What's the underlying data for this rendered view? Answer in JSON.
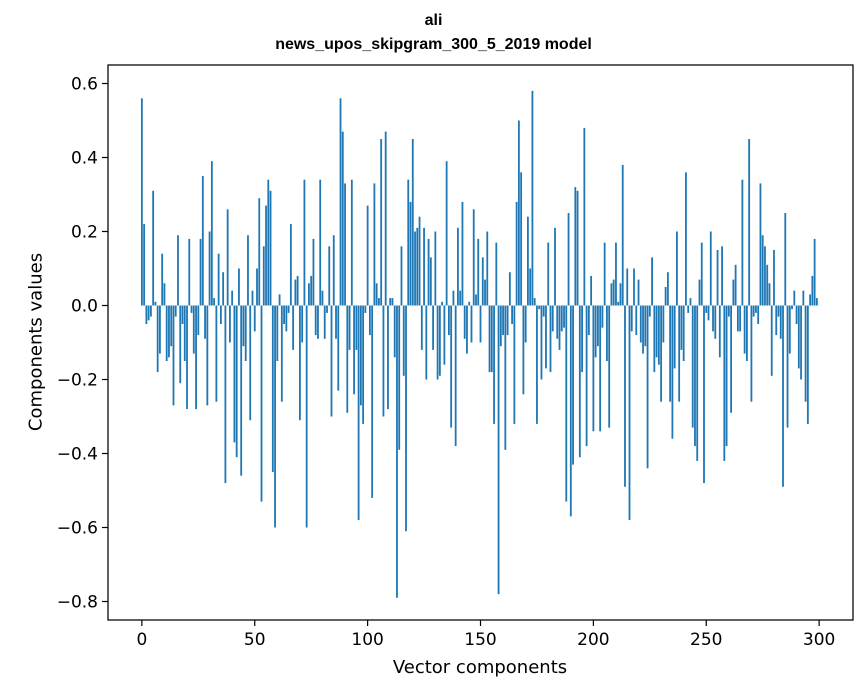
{
  "chart_data": {
    "type": "bar",
    "title": "ali",
    "subtitle": "news_upos_skipgram_300_5_2019 model",
    "xlabel": "Vector components",
    "ylabel": "Components values",
    "xlim": [
      -15,
      315
    ],
    "ylim": [
      -0.85,
      0.65
    ],
    "xticks": [
      0,
      50,
      100,
      150,
      200,
      250,
      300
    ],
    "yticks": [
      -0.8,
      -0.6,
      -0.4,
      -0.2,
      0.0,
      0.2,
      0.4,
      0.6
    ],
    "ytick_labels": [
      "−0.8",
      "−0.6",
      "−0.4",
      "−0.2",
      "0.0",
      "0.2",
      "0.4",
      "0.6"
    ],
    "bar_color": "#1f77b4",
    "grid": false,
    "x": "component index 0..299",
    "values": [
      0.56,
      0.22,
      -0.05,
      -0.04,
      -0.03,
      0.31,
      0.01,
      -0.18,
      -0.13,
      0.14,
      0.06,
      -0.15,
      -0.14,
      -0.11,
      -0.27,
      -0.03,
      0.19,
      -0.21,
      -0.05,
      -0.15,
      -0.28,
      0.18,
      -0.02,
      -0.13,
      -0.28,
      -0.08,
      0.18,
      0.35,
      -0.09,
      -0.27,
      0.2,
      0.39,
      0.02,
      -0.26,
      0.14,
      -0.05,
      0.09,
      -0.48,
      0.26,
      -0.1,
      0.04,
      -0.37,
      -0.41,
      0.1,
      -0.46,
      -0.11,
      -0.15,
      0.19,
      -0.31,
      0.04,
      -0.07,
      0.1,
      0.29,
      -0.53,
      0.16,
      0.27,
      0.34,
      0.31,
      -0.45,
      -0.6,
      -0.15,
      0.03,
      -0.26,
      -0.05,
      -0.07,
      -0.02,
      0.22,
      -0.12,
      0.07,
      0.08,
      -0.31,
      -0.1,
      0.34,
      -0.6,
      0.06,
      0.08,
      0.18,
      -0.08,
      -0.09,
      0.34,
      0.04,
      -0.09,
      -0.02,
      0.16,
      -0.3,
      0.19,
      -0.09,
      -0.23,
      0.56,
      0.47,
      0.33,
      -0.29,
      -0.12,
      0.34,
      -0.24,
      -0.12,
      -0.58,
      -0.27,
      -0.32,
      -0.02,
      0.27,
      -0.08,
      -0.52,
      0.33,
      0.06,
      0.02,
      0.45,
      -0.3,
      0.47,
      -0.28,
      0.02,
      0.02,
      -0.14,
      -0.79,
      -0.39,
      0.16,
      -0.19,
      -0.61,
      0.34,
      0.28,
      0.45,
      0.2,
      0.21,
      0.24,
      -0.12,
      0.21,
      -0.2,
      0.18,
      0.13,
      -0.12,
      0.2,
      -0.2,
      -0.19,
      0.01,
      -0.16,
      0.39,
      -0.08,
      -0.33,
      0.04,
      -0.38,
      0.21,
      0.04,
      0.28,
      -0.09,
      -0.13,
      0.01,
      -0.1,
      0.26,
      0.03,
      0.18,
      -0.1,
      0.13,
      0.07,
      0.2,
      -0.18,
      -0.18,
      -0.32,
      0.17,
      -0.78,
      -0.11,
      -0.08,
      -0.39,
      -0.08,
      0.09,
      -0.05,
      -0.32,
      0.28,
      0.5,
      0.36,
      -0.24,
      -0.1,
      0.24,
      0.1,
      0.58,
      0.02,
      -0.32,
      -0.01,
      -0.2,
      -0.03,
      -0.17,
      0.17,
      -0.18,
      -0.07,
      0.21,
      -0.09,
      -0.12,
      -0.07,
      -0.06,
      -0.53,
      0.25,
      -0.57,
      -0.43,
      0.32,
      0.31,
      -0.41,
      -0.18,
      0.48,
      -0.38,
      -0.08,
      0.08,
      -0.34,
      -0.14,
      -0.11,
      -0.34,
      -0.06,
      0.17,
      -0.15,
      -0.33,
      0.06,
      0.07,
      0.17,
      0.01,
      0.06,
      0.38,
      -0.49,
      0.1,
      -0.58,
      -0.07,
      0.1,
      -0.08,
      0.07,
      -0.1,
      -0.13,
      -0.11,
      -0.44,
      -0.03,
      0.13,
      -0.18,
      -0.14,
      -0.16,
      -0.26,
      -0.1,
      0.05,
      0.09,
      -0.26,
      -0.36,
      -0.17,
      0.2,
      -0.26,
      -0.12,
      -0.15,
      0.36,
      -0.02,
      0.02,
      -0.33,
      -0.38,
      -0.42,
      0.07,
      0.17,
      -0.48,
      -0.02,
      -0.04,
      0.2,
      -0.07,
      -0.09,
      0.15,
      -0.14,
      0.16,
      -0.42,
      -0.38,
      -0.03,
      -0.29,
      0.07,
      0.11,
      -0.07,
      -0.07,
      0.34,
      -0.13,
      -0.15,
      0.45,
      -0.26,
      -0.03,
      -0.02,
      -0.05,
      0.33,
      0.19,
      0.16,
      0.11,
      0.06,
      -0.19,
      0.15,
      -0.08,
      -0.03,
      -0.09,
      -0.49,
      0.25,
      -0.33,
      -0.13,
      -0.01,
      0.04,
      -0.05,
      -0.17,
      -0.2,
      0.04,
      -0.26,
      -0.32,
      0.03,
      0.08,
      0.18,
      0.02
    ]
  }
}
